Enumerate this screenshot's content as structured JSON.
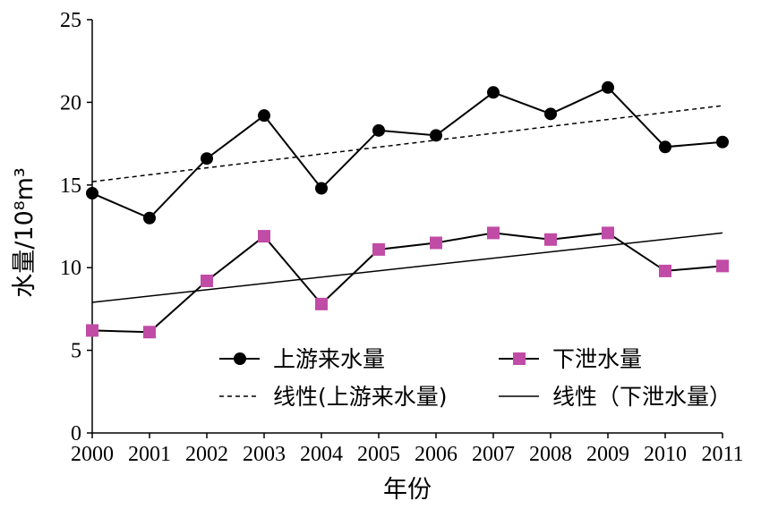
{
  "chart_data": {
    "type": "line",
    "xlabel": "年份",
    "ylabel": "水量/10⁸m³",
    "ylim": [
      0,
      25
    ],
    "yticks": [
      "0",
      "5",
      "10",
      "15",
      "20",
      "25"
    ],
    "categories": [
      "2000",
      "2001",
      "2002",
      "2003",
      "2004",
      "2005",
      "2006",
      "2007",
      "2008",
      "2009",
      "2010",
      "2011"
    ],
    "series": [
      {
        "name": "上游来水量",
        "marker": "circle",
        "color": "#000000",
        "values": [
          14.5,
          13.0,
          16.6,
          19.2,
          14.8,
          18.3,
          18.0,
          20.6,
          19.3,
          20.9,
          17.3,
          17.6
        ]
      },
      {
        "name": "下泄水量",
        "marker": "square",
        "color": "#c04ca6",
        "values": [
          6.2,
          6.1,
          9.2,
          11.9,
          7.8,
          11.1,
          11.5,
          12.1,
          11.7,
          12.1,
          9.8,
          10.1
        ]
      }
    ],
    "trendlines": [
      {
        "name": "线性(上游来水量)",
        "style": "dashed",
        "start": 15.2,
        "end": 19.8
      },
      {
        "name": "线性（下泄水量）",
        "style": "solid",
        "start": 7.9,
        "end": 12.1
      }
    ],
    "legend_placement": "bottom-right",
    "grid": false
  }
}
